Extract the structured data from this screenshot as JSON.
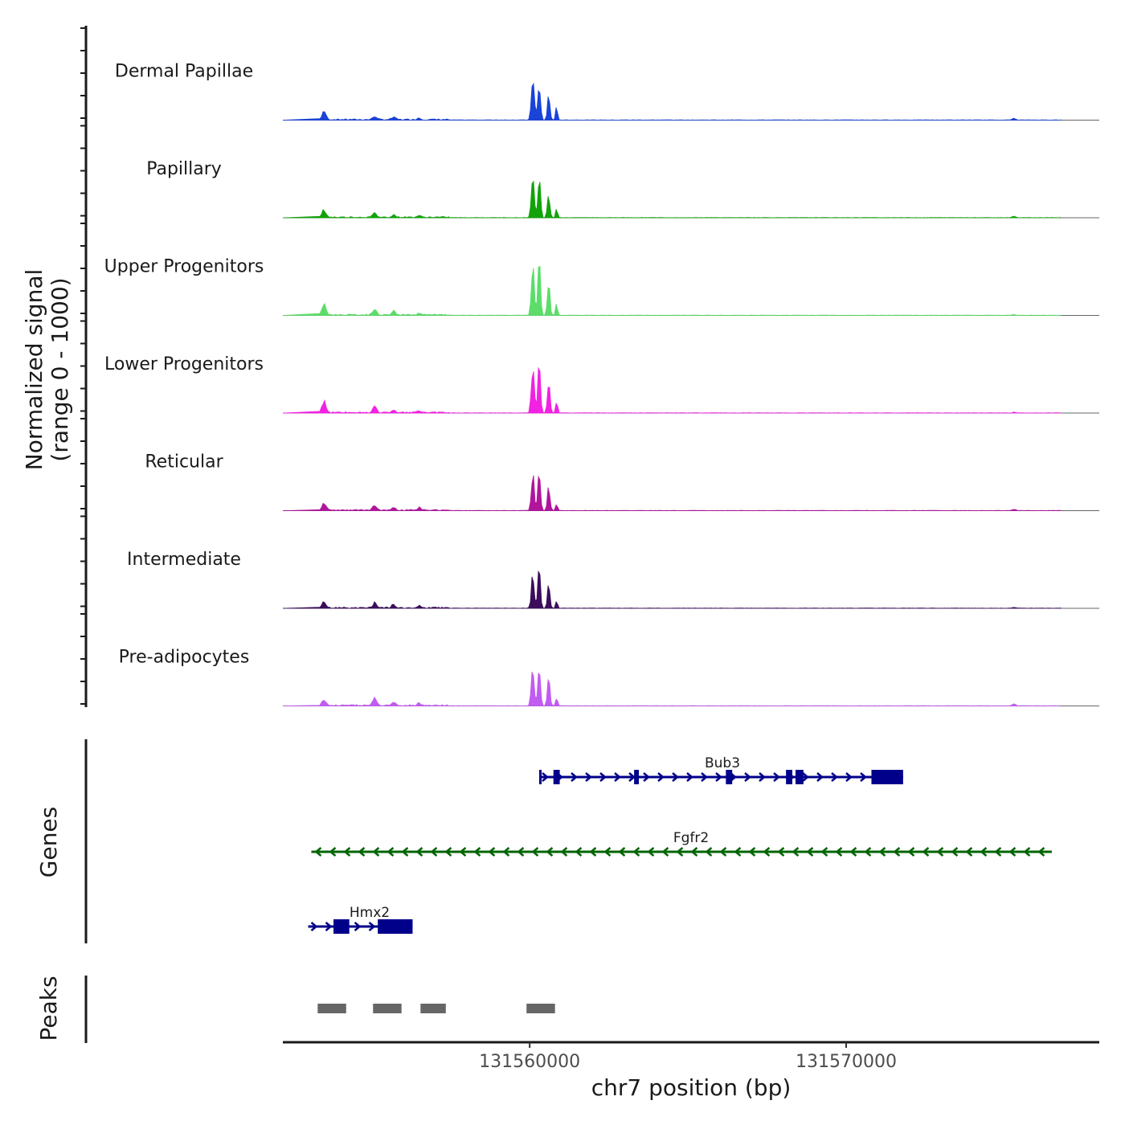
{
  "chart_data": {
    "type": "area",
    "title": "",
    "ylabel_line1": "Normalized signal",
    "ylabel_line2": "(range 0 - 1000)",
    "xlabel": "chr7 position (bp)",
    "chromosome": "chr7",
    "xlim": [
      131552200,
      131578000
    ],
    "xticks": [
      131560000,
      131570000
    ],
    "xtick_labels": [
      "131560000",
      "131570000"
    ],
    "ylim": [
      0,
      1000
    ],
    "tracks": [
      {
        "name": "Dermal Papillae",
        "color": "#1a43d8",
        "sample": "dp",
        "peaks": [
          [
            131553500,
            60,
            140
          ],
          [
            131555100,
            60,
            50
          ],
          [
            131555700,
            60,
            40
          ],
          [
            131556500,
            50,
            30
          ],
          [
            131560100,
            45,
            680
          ],
          [
            131560300,
            40,
            590
          ],
          [
            131560600,
            40,
            360
          ],
          [
            131560850,
            30,
            200
          ],
          [
            131575300,
            50,
            25
          ]
        ]
      },
      {
        "name": "Papillary",
        "color": "#12a30a",
        "sample": "pap",
        "peaks": [
          [
            131553500,
            60,
            110
          ],
          [
            131555100,
            60,
            60
          ],
          [
            131555700,
            60,
            35
          ],
          [
            131556500,
            50,
            25
          ],
          [
            131560100,
            45,
            660
          ],
          [
            131560300,
            40,
            690
          ],
          [
            131560600,
            40,
            320
          ],
          [
            131560850,
            30,
            150
          ],
          [
            131575300,
            50,
            25
          ]
        ]
      },
      {
        "name": "Upper Progenitors",
        "color": "#5cdd6a",
        "sample": "up",
        "peaks": [
          [
            131553500,
            60,
            160
          ],
          [
            131555100,
            60,
            80
          ],
          [
            131555700,
            60,
            55
          ],
          [
            131556500,
            50,
            30
          ],
          [
            131560100,
            45,
            700
          ],
          [
            131560300,
            40,
            860
          ],
          [
            131560600,
            40,
            470
          ],
          [
            131560850,
            30,
            180
          ],
          [
            131575300,
            50,
            10
          ]
        ]
      },
      {
        "name": "Lower Progenitors",
        "color": "#f222e2",
        "sample": "lp",
        "peaks": [
          [
            131553500,
            60,
            180
          ],
          [
            131555100,
            60,
            100
          ],
          [
            131555700,
            60,
            40
          ],
          [
            131556500,
            50,
            30
          ],
          [
            131560100,
            45,
            760
          ],
          [
            131560300,
            40,
            870
          ],
          [
            131560600,
            40,
            540
          ],
          [
            131560850,
            30,
            190
          ],
          [
            131575300,
            50,
            10
          ]
        ]
      },
      {
        "name": "Reticular",
        "color": "#b0159c",
        "sample": "ret",
        "peaks": [
          [
            131553500,
            60,
            110
          ],
          [
            131555100,
            60,
            70
          ],
          [
            131555700,
            60,
            40
          ],
          [
            131556500,
            50,
            40
          ],
          [
            131560100,
            45,
            520
          ],
          [
            131560300,
            40,
            590
          ],
          [
            131560600,
            40,
            370
          ],
          [
            131560850,
            30,
            120
          ],
          [
            131575300,
            50,
            20
          ]
        ]
      },
      {
        "name": "Intermediate",
        "color": "#3b0d5a",
        "sample": "int",
        "peaks": [
          [
            131553500,
            60,
            100
          ],
          [
            131555100,
            60,
            70
          ],
          [
            131555700,
            60,
            50
          ],
          [
            131556500,
            50,
            30
          ],
          [
            131560100,
            45,
            530
          ],
          [
            131560300,
            40,
            610
          ],
          [
            131560600,
            40,
            340
          ],
          [
            131560850,
            30,
            110
          ],
          [
            131575300,
            50,
            15
          ]
        ]
      },
      {
        "name": "Pre-adipocytes",
        "color": "#c15cf0",
        "sample": "pre",
        "peaks": [
          [
            131553500,
            60,
            90
          ],
          [
            131555100,
            60,
            130
          ],
          [
            131555700,
            60,
            50
          ],
          [
            131556500,
            50,
            40
          ],
          [
            131560100,
            45,
            620
          ],
          [
            131560300,
            40,
            700
          ],
          [
            131560600,
            40,
            390
          ],
          [
            131560850,
            30,
            130
          ],
          [
            131575300,
            50,
            30
          ]
        ]
      }
    ],
    "genes_label": "Genes",
    "genes": [
      {
        "name": "Bub3",
        "strand": "+",
        "start": 131560300,
        "end": 131571800,
        "color": "#00008b",
        "exons": [
          [
            131560300,
            131560350
          ],
          [
            131560750,
            131560950
          ],
          [
            131563300,
            131563450
          ],
          [
            131566200,
            131566400
          ],
          [
            131568100,
            131568300
          ],
          [
            131568400,
            131568650
          ],
          [
            131570800,
            131571800
          ]
        ]
      },
      {
        "name": "Fgfr2",
        "strand": "-",
        "start": 131553100,
        "end": 131576500,
        "color": "#006400",
        "exons": []
      },
      {
        "name": "Hmx2",
        "strand": "+",
        "start": 131553000,
        "end": 131556300,
        "color": "#00008b",
        "exons": [
          [
            131553800,
            131554300
          ],
          [
            131555200,
            131556300
          ]
        ]
      }
    ],
    "peaks_label": "Peaks",
    "peak_regions": [
      [
        131553300,
        131554200
      ],
      [
        131555050,
        131555950
      ],
      [
        131556550,
        131557350
      ],
      [
        131559900,
        131560800
      ]
    ]
  }
}
